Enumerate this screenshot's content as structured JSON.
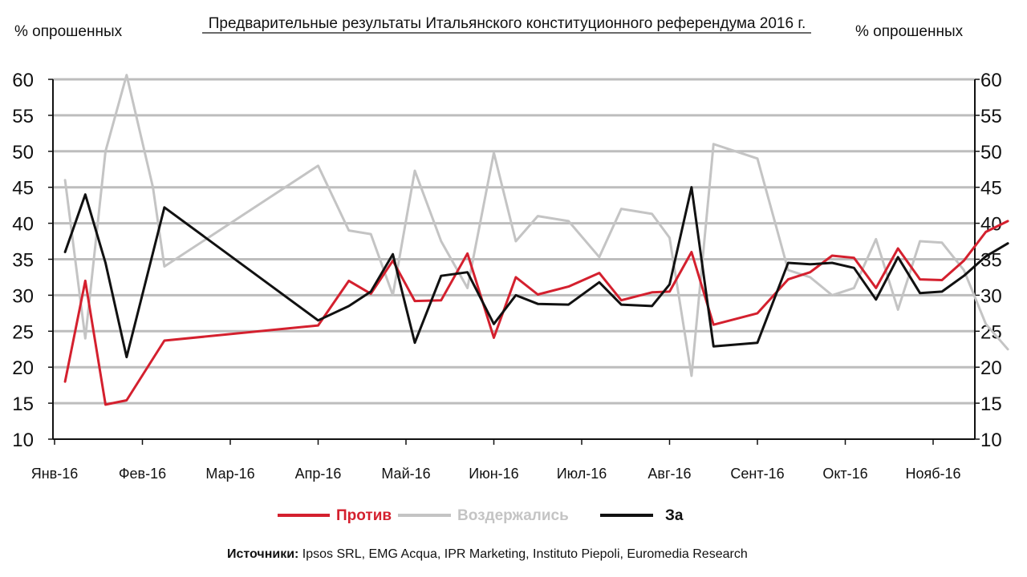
{
  "chart_data": {
    "type": "line",
    "title": "Предварительные результаты Итальянского конституционного референдума 2016 г.",
    "ylabel_left": "% опрошенных",
    "ylabel_right": "% опрошенных",
    "ylim": [
      10,
      60
    ],
    "y_ticks": [
      60,
      55,
      50,
      45,
      40,
      35,
      30,
      25,
      20,
      15,
      10
    ],
    "x_month_ticks": [
      "Янв-16",
      "Фев-16",
      "Мар-16",
      "Апр-16",
      "Май-16",
      "Июн-16",
      "Июл-16",
      "Авг-16",
      "Сент-16",
      "Окт-16",
      "Ноябь-16"
    ],
    "x_month_tick_labels": [
      "Янв-16",
      "Фев-16",
      "Мар-16",
      "Апр-16",
      "Май-16",
      "Июн-16",
      "Июл-16",
      "Авг-16",
      "Сент-16",
      "Окт-16",
      "Нояб-16"
    ],
    "grid": true,
    "legend_position": "bottom",
    "series": [
      {
        "name": "Против",
        "color": "#d4202e",
        "points": [
          [
            0.12,
            18
          ],
          [
            0.35,
            32
          ],
          [
            0.58,
            14.8
          ],
          [
            0.82,
            15.4
          ],
          [
            1.25,
            23.7
          ],
          [
            3.0,
            25.8
          ],
          [
            3.35,
            32
          ],
          [
            3.6,
            30.2
          ],
          [
            3.85,
            34.8
          ],
          [
            4.1,
            29.2
          ],
          [
            4.4,
            29.3
          ],
          [
            4.7,
            35.8
          ],
          [
            5.0,
            24.1
          ],
          [
            5.25,
            32.5
          ],
          [
            5.5,
            30.1
          ],
          [
            5.85,
            31.2
          ],
          [
            6.2,
            33.1
          ],
          [
            6.45,
            29.3
          ],
          [
            6.8,
            30.4
          ],
          [
            7.0,
            30.5
          ],
          [
            7.25,
            36
          ],
          [
            7.5,
            25.9
          ],
          [
            8.0,
            27.5
          ],
          [
            8.35,
            32.2
          ],
          [
            8.6,
            33.2
          ],
          [
            8.85,
            35.5
          ],
          [
            9.1,
            35.2
          ],
          [
            9.35,
            31
          ],
          [
            9.6,
            36.5
          ],
          [
            9.85,
            32.2
          ],
          [
            10.1,
            32.1
          ],
          [
            10.35,
            34.8
          ],
          [
            10.6,
            38.8
          ],
          [
            10.85,
            40.3
          ]
        ]
      },
      {
        "name": "Воздержались",
        "color": "#c4c4c4",
        "points": [
          [
            0.12,
            46
          ],
          [
            0.35,
            24
          ],
          [
            0.58,
            50
          ],
          [
            0.82,
            61
          ],
          [
            1.12,
            45
          ],
          [
            1.25,
            34
          ],
          [
            3.0,
            48
          ],
          [
            3.35,
            39
          ],
          [
            3.6,
            38.5
          ],
          [
            3.85,
            30
          ],
          [
            4.1,
            47.3
          ],
          [
            4.4,
            37.5
          ],
          [
            4.7,
            31
          ],
          [
            5.0,
            49.8
          ],
          [
            5.25,
            37.5
          ],
          [
            5.5,
            41
          ],
          [
            5.85,
            40.3
          ],
          [
            6.2,
            35.3
          ],
          [
            6.45,
            42
          ],
          [
            6.8,
            41.3
          ],
          [
            7.0,
            38
          ],
          [
            7.25,
            18.8
          ],
          [
            7.5,
            51
          ],
          [
            8.0,
            49
          ],
          [
            8.35,
            33.5
          ],
          [
            8.6,
            32.5
          ],
          [
            8.85,
            30
          ],
          [
            9.1,
            31
          ],
          [
            9.35,
            37.8
          ],
          [
            9.6,
            28
          ],
          [
            9.85,
            37.5
          ],
          [
            10.1,
            37.3
          ],
          [
            10.35,
            33.5
          ],
          [
            10.6,
            26
          ],
          [
            10.85,
            22.5
          ]
        ]
      },
      {
        "name": "За",
        "color": "#111111",
        "points": [
          [
            0.12,
            36
          ],
          [
            0.35,
            44
          ],
          [
            0.58,
            34.5
          ],
          [
            0.82,
            21.4
          ],
          [
            1.25,
            42.2
          ],
          [
            3.0,
            26.5
          ],
          [
            3.35,
            28.5
          ],
          [
            3.6,
            30.5
          ],
          [
            3.85,
            35.7
          ],
          [
            4.1,
            23.4
          ],
          [
            4.4,
            32.7
          ],
          [
            4.7,
            33.2
          ],
          [
            5.0,
            26
          ],
          [
            5.25,
            30
          ],
          [
            5.5,
            28.8
          ],
          [
            5.85,
            28.7
          ],
          [
            6.2,
            31.8
          ],
          [
            6.45,
            28.7
          ],
          [
            6.8,
            28.5
          ],
          [
            7.0,
            31.5
          ],
          [
            7.25,
            45
          ],
          [
            7.5,
            22.9
          ],
          [
            8.0,
            23.4
          ],
          [
            8.35,
            34.5
          ],
          [
            8.6,
            34.3
          ],
          [
            8.85,
            34.5
          ],
          [
            9.1,
            33.8
          ],
          [
            9.35,
            29.4
          ],
          [
            9.6,
            35.3
          ],
          [
            9.85,
            30.3
          ],
          [
            10.1,
            30.5
          ],
          [
            10.35,
            32.7
          ],
          [
            10.6,
            35.4
          ],
          [
            10.85,
            37.2
          ]
        ]
      }
    ]
  },
  "legend": [
    {
      "label": "Против",
      "color": "#d4202e"
    },
    {
      "label": "Воздержались",
      "color": "#c4c4c4"
    },
    {
      "label": "За",
      "color": "#111111"
    }
  ],
  "source": {
    "prefix": "Источники:",
    "text": " Ipsos SRL, EMG Acqua, IPR Marketing, Instituto Piepoli, Euromedia Research"
  }
}
